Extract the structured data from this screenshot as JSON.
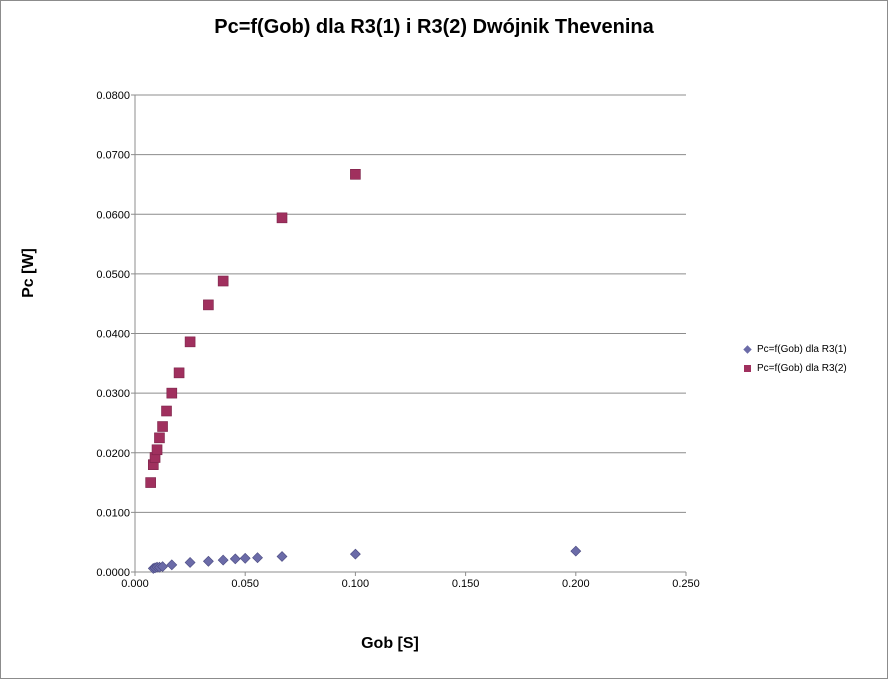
{
  "chart_data": {
    "type": "scatter",
    "title": "Pc=f(Gob) dla R3(1) i R3(2) Dwójnik Thevenina",
    "xlabel": "Gob [S]",
    "ylabel": "Pc [W]",
    "xlim": [
      0,
      0.25
    ],
    "ylim": [
      0,
      0.08
    ],
    "x_ticks": [
      "0.000",
      "0.050",
      "0.100",
      "0.150",
      "0.200",
      "0.250"
    ],
    "y_ticks": [
      "0.0000",
      "0.0100",
      "0.0200",
      "0.0300",
      "0.0400",
      "0.0500",
      "0.0600",
      "0.0700",
      "0.0800"
    ],
    "grid": "horizontal",
    "legend_position": "right",
    "series": [
      {
        "name": "Pc=f(Gob) dla R3(1)",
        "marker": "diamond",
        "color": "#6b6ba8",
        "points": [
          [
            0.0083,
            0.0006
          ],
          [
            0.0091,
            0.0007
          ],
          [
            0.01,
            0.0008
          ],
          [
            0.0111,
            0.0008
          ],
          [
            0.0125,
            0.0009
          ],
          [
            0.0167,
            0.0012
          ],
          [
            0.025,
            0.0016
          ],
          [
            0.0333,
            0.0018
          ],
          [
            0.04,
            0.002
          ],
          [
            0.0455,
            0.0022
          ],
          [
            0.05,
            0.0023
          ],
          [
            0.0556,
            0.0024
          ],
          [
            0.0667,
            0.0026
          ],
          [
            0.1,
            0.003
          ],
          [
            0.2,
            0.0035
          ]
        ]
      },
      {
        "name": "Pc=f(Gob) dla R3(2)",
        "marker": "square",
        "color": "#a0305e",
        "points": [
          [
            0.0071,
            0.015
          ],
          [
            0.0083,
            0.018
          ],
          [
            0.0091,
            0.0192
          ],
          [
            0.01,
            0.0205
          ],
          [
            0.0111,
            0.0225
          ],
          [
            0.0125,
            0.0244
          ],
          [
            0.0143,
            0.027
          ],
          [
            0.0167,
            0.03
          ],
          [
            0.02,
            0.0334
          ],
          [
            0.025,
            0.0386
          ],
          [
            0.0333,
            0.0448
          ],
          [
            0.04,
            0.0488
          ],
          [
            0.0667,
            0.0594
          ],
          [
            0.1,
            0.0667
          ]
        ]
      }
    ]
  }
}
